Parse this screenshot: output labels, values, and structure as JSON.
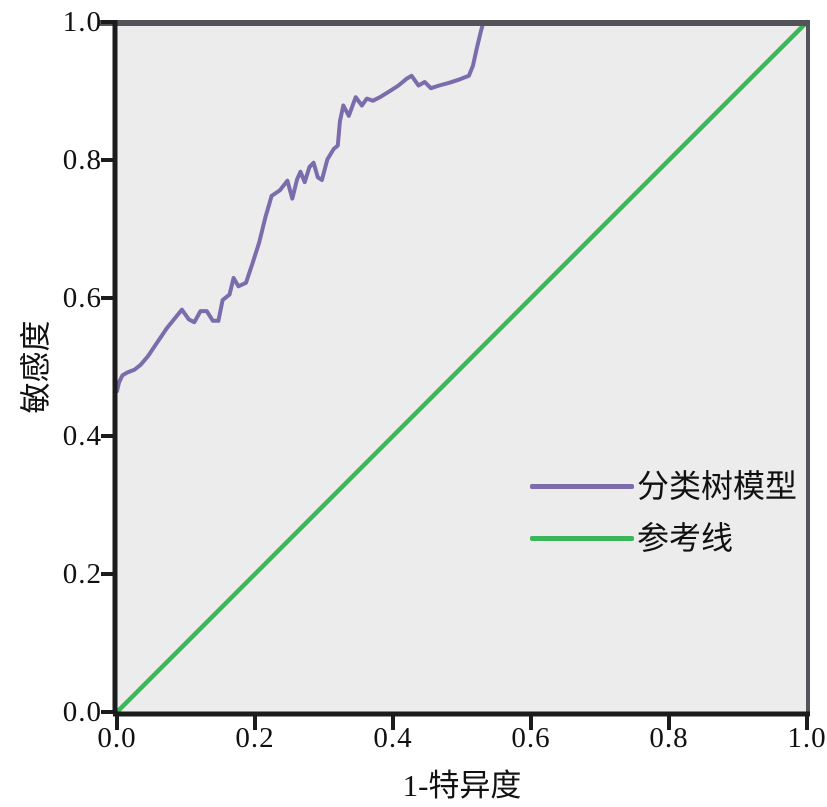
{
  "chart_data": {
    "type": "line",
    "title": "",
    "xlabel": "1-特异度",
    "ylabel": "敏感度",
    "xlim": [
      0.0,
      1.0
    ],
    "ylim": [
      0.0,
      1.0
    ],
    "grid": false,
    "plot_background": "#edecec",
    "frame_color": "#525457",
    "axis_color": "#1c1c1c",
    "tick_label_color": "#111111",
    "legend_position": "inside-right-middle",
    "x_ticks": [
      0.0,
      0.2,
      0.4,
      0.6,
      0.8,
      1.0
    ],
    "x_tick_labels": [
      "0.0",
      "0.2",
      "0.4",
      "0.6",
      "0.8",
      "1.0"
    ],
    "y_ticks": [
      0.0,
      0.2,
      0.4,
      0.6,
      0.8,
      1.0
    ],
    "y_tick_labels": [
      "0.0",
      "0.2",
      "0.4",
      "0.6",
      "0.8",
      "1.0"
    ],
    "series": [
      {
        "name": "分类树模型",
        "color": "#7b6cab",
        "line_width": 4,
        "points": [
          [
            0.0,
            0.465
          ],
          [
            0.003,
            0.478
          ],
          [
            0.008,
            0.488
          ],
          [
            0.015,
            0.492
          ],
          [
            0.025,
            0.496
          ],
          [
            0.034,
            0.503
          ],
          [
            0.045,
            0.516
          ],
          [
            0.058,
            0.535
          ],
          [
            0.072,
            0.556
          ],
          [
            0.085,
            0.572
          ],
          [
            0.094,
            0.583
          ],
          [
            0.104,
            0.569
          ],
          [
            0.112,
            0.565
          ],
          [
            0.121,
            0.581
          ],
          [
            0.13,
            0.581
          ],
          [
            0.139,
            0.567
          ],
          [
            0.147,
            0.567
          ],
          [
            0.153,
            0.597
          ],
          [
            0.163,
            0.605
          ],
          [
            0.169,
            0.629
          ],
          [
            0.176,
            0.617
          ],
          [
            0.187,
            0.622
          ],
          [
            0.196,
            0.649
          ],
          [
            0.206,
            0.68
          ],
          [
            0.215,
            0.717
          ],
          [
            0.224,
            0.748
          ],
          [
            0.236,
            0.756
          ],
          [
            0.247,
            0.77
          ],
          [
            0.254,
            0.744
          ],
          [
            0.261,
            0.772
          ],
          [
            0.266,
            0.783
          ],
          [
            0.272,
            0.768
          ],
          [
            0.279,
            0.79
          ],
          [
            0.285,
            0.796
          ],
          [
            0.291,
            0.775
          ],
          [
            0.297,
            0.771
          ],
          [
            0.305,
            0.801
          ],
          [
            0.314,
            0.816
          ],
          [
            0.32,
            0.821
          ],
          [
            0.323,
            0.856
          ],
          [
            0.328,
            0.879
          ],
          [
            0.336,
            0.864
          ],
          [
            0.346,
            0.891
          ],
          [
            0.355,
            0.879
          ],
          [
            0.362,
            0.889
          ],
          [
            0.371,
            0.886
          ],
          [
            0.381,
            0.891
          ],
          [
            0.394,
            0.899
          ],
          [
            0.408,
            0.908
          ],
          [
            0.42,
            0.918
          ],
          [
            0.427,
            0.922
          ],
          [
            0.437,
            0.908
          ],
          [
            0.446,
            0.913
          ],
          [
            0.455,
            0.904
          ],
          [
            0.467,
            0.908
          ],
          [
            0.482,
            0.912
          ],
          [
            0.497,
            0.917
          ],
          [
            0.51,
            0.922
          ],
          [
            0.516,
            0.937
          ],
          [
            0.521,
            0.96
          ],
          [
            0.527,
            0.985
          ],
          [
            0.531,
            1.0
          ]
        ]
      },
      {
        "name": "参考线",
        "color": "#3cb65a",
        "line_width": 4.5,
        "points": [
          [
            0.0,
            0.0
          ],
          [
            1.0,
            1.0
          ]
        ]
      }
    ]
  }
}
